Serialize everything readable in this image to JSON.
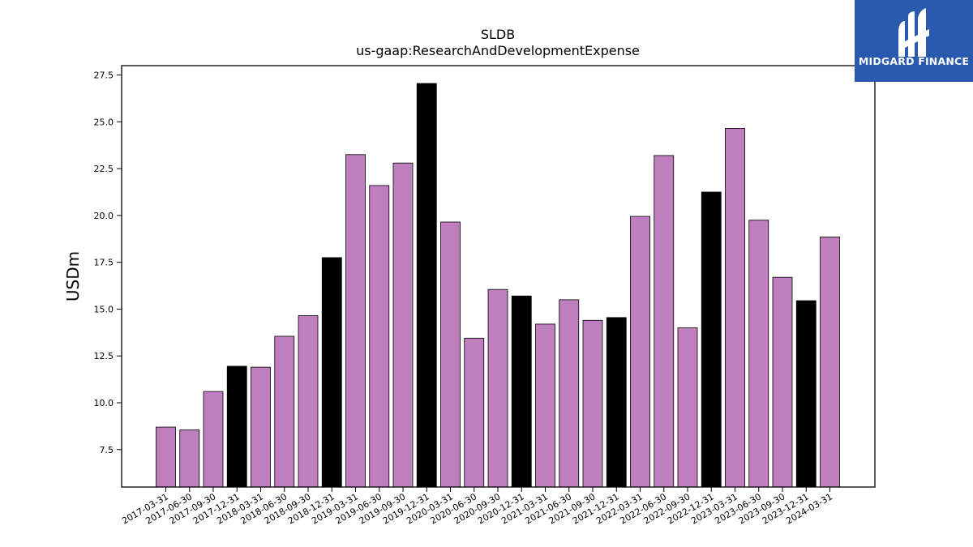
{
  "chart_data": {
    "type": "bar",
    "title": "SLDB",
    "subtitle": "us-gaap:ResearchAndDevelopmentExpense",
    "xlabel": "",
    "ylabel": "USDm",
    "ylim": [
      5.5,
      28
    ],
    "yticks": [
      "7.5",
      "10.0",
      "12.5",
      "15.0",
      "17.5",
      "20.0",
      "22.5",
      "25.0",
      "27.5"
    ],
    "categories": [
      "2017-03-31",
      "2017-06-30",
      "2017-09-30",
      "2017-12-31",
      "2018-03-31",
      "2018-06-30",
      "2018-09-30",
      "2018-12-31",
      "2019-03-31",
      "2019-06-30",
      "2019-09-30",
      "2019-12-31",
      "2020-03-31",
      "2020-06-30",
      "2020-09-30",
      "2020-12-31",
      "2021-03-31",
      "2021-06-30",
      "2021-09-30",
      "2021-12-31",
      "2022-03-31",
      "2022-06-30",
      "2022-09-30",
      "2022-12-31",
      "2023-03-31",
      "2023-06-30",
      "2023-09-30",
      "2023-12-31",
      "2024-03-31"
    ],
    "values": [
      8.7,
      8.55,
      10.6,
      11.95,
      11.9,
      13.55,
      14.65,
      17.75,
      23.25,
      21.6,
      22.8,
      27.05,
      19.65,
      13.45,
      16.05,
      15.7,
      14.2,
      15.5,
      14.4,
      14.55,
      19.95,
      23.2,
      14.0,
      21.25,
      24.65,
      19.75,
      16.7,
      15.45,
      18.85
    ],
    "year_end_marked": [
      false,
      false,
      false,
      true,
      false,
      false,
      false,
      true,
      false,
      false,
      false,
      true,
      false,
      false,
      false,
      true,
      false,
      false,
      false,
      true,
      false,
      false,
      false,
      true,
      false,
      false,
      false,
      true,
      false
    ],
    "colors": {
      "quarter": "#bf7fbf",
      "year_end": "#000000",
      "edge": "#000000"
    },
    "grid": false,
    "legend": "none"
  },
  "logo": {
    "text": "MIDGARD FINANCE",
    "background": "#2a5aad"
  }
}
